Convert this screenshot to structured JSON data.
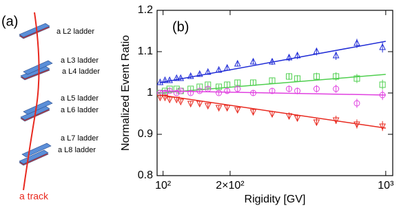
{
  "diagram": {
    "panel_label": "(a)",
    "ladders": [
      "a L2 ladder",
      "a L3 ladder",
      "a L4 ladder",
      "a L5 ladder",
      "a L6 ladder",
      "a L7 ladder",
      "a L8 ladder"
    ],
    "track_label": "a track"
  },
  "chart_data": {
    "type": "scatter",
    "annotation": "(b)",
    "x_label": "Rigidity [GV]",
    "y_label": "Normalized Event Ratio",
    "xscale": "log",
    "xlim": [
      94,
      1075
    ],
    "ylim": [
      0.8,
      1.2
    ],
    "xticks": [
      {
        "value": 100,
        "label": "10²"
      },
      {
        "value": 200,
        "label": "2×10²"
      },
      {
        "value": 1000,
        "label": "10³"
      }
    ],
    "yticks": [
      0.8,
      0.9,
      1,
      1.1,
      1.2
    ],
    "x": [
      97,
      102,
      107,
      115,
      120,
      133,
      146,
      159,
      178,
      194,
      216,
      254,
      309,
      368,
      401,
      489,
      598,
      742,
      967
    ],
    "errors": [
      0.004,
      0.004,
      0.004,
      0.004,
      0.004,
      0.005,
      0.005,
      0.005,
      0.005,
      0.006,
      0.006,
      0.006,
      0.007,
      0.008,
      0.008,
      0.009,
      0.01,
      0.011,
      0.012
    ],
    "fit_x": [
      97,
      1000
    ],
    "series": [
      {
        "color": "#1f2bd6",
        "marker": "triangle-up",
        "values": [
          1.025,
          1.03,
          1.03,
          1.035,
          1.035,
          1.04,
          1.045,
          1.05,
          1.055,
          1.06,
          1.07,
          1.075,
          1.075,
          1.085,
          1.09,
          1.1,
          1.09,
          1.12,
          1.11
        ],
        "fit": [
          1.025,
          1.125
        ]
      },
      {
        "color": "#4fcf4f",
        "marker": "square",
        "values": [
          1.0,
          1.005,
          1.01,
          1.01,
          1.005,
          1.01,
          1.015,
          1.02,
          1.015,
          1.02,
          1.025,
          1.025,
          1.03,
          1.04,
          1.035,
          1.04,
          1.04,
          1.035,
          1.02
        ],
        "fit": [
          1.0,
          1.045
        ]
      },
      {
        "color": "#e040e0",
        "marker": "circle",
        "values": [
          1.0,
          1.0,
          1.005,
          1.0,
          1.005,
          1.0,
          1.005,
          1.01,
          1.0,
          1.005,
          1.01,
          1.0,
          1.005,
          1.01,
          1.005,
          1.01,
          1.01,
          0.975,
          0.995
        ],
        "fit": [
          1.005,
          0.995
        ]
      },
      {
        "color": "#e8281e",
        "marker": "triangle-down",
        "values": [
          0.99,
          0.99,
          0.985,
          0.985,
          0.98,
          0.975,
          0.975,
          0.97,
          0.965,
          0.965,
          0.96,
          0.955,
          0.95,
          0.945,
          0.94,
          0.93,
          0.935,
          0.925,
          0.92
        ],
        "fit": [
          0.995,
          0.915
        ]
      }
    ]
  }
}
